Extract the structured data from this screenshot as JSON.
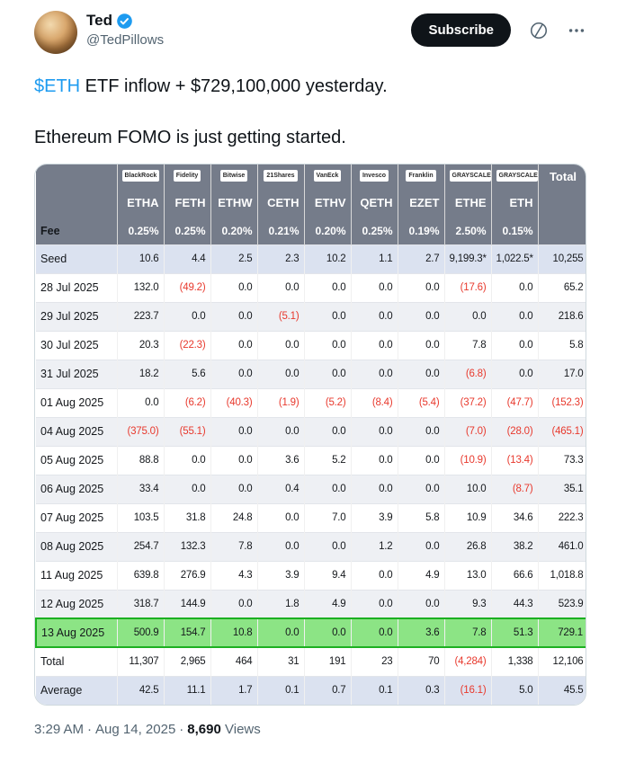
{
  "post": {
    "author": {
      "name": "Ted",
      "handle": "@TedPillows"
    },
    "actions": {
      "subscribe_label": "Subscribe"
    },
    "body": {
      "cashtag": "$ETH",
      "line1_rest": " ETF inflow + $729,100,000 yesterday.",
      "line2": "Ethereum FOMO is just getting started."
    },
    "footer": {
      "time": "3:29 AM",
      "separator": "·",
      "date": "Aug 14, 2025",
      "views_count": "8,690",
      "views_label": "Views"
    }
  },
  "table": {
    "issuers": [
      "BlackRock",
      "Fidelity",
      "Bitwise",
      "21Shares",
      "VanEck",
      "Invesco",
      "Franklin",
      "GRAYSCALE",
      "GRAYSCALE"
    ],
    "total_header": "Total",
    "tickers": [
      "ETHA",
      "FETH",
      "ETHW",
      "CETH",
      "ETHV",
      "QETH",
      "EZET",
      "ETHE",
      "ETH"
    ],
    "fee_label": "Fee",
    "fees": [
      "0.25%",
      "0.25%",
      "0.20%",
      "0.21%",
      "0.20%",
      "0.25%",
      "0.19%",
      "2.50%",
      "0.15%"
    ],
    "rows": [
      {
        "label": "Seed",
        "kind": "seed",
        "values": [
          "10.6",
          "4.4",
          "2.5",
          "2.3",
          "10.2",
          "1.1",
          "2.7",
          "9,199.3*",
          "1,022.5*"
        ],
        "total": "10,255"
      },
      {
        "label": "28 Jul 2025",
        "kind": "date",
        "values": [
          "132.0",
          "(49.2)",
          "0.0",
          "0.0",
          "0.0",
          "0.0",
          "0.0",
          "(17.6)",
          "0.0"
        ],
        "total": "65.2"
      },
      {
        "label": "29 Jul 2025",
        "kind": "date",
        "values": [
          "223.7",
          "0.0",
          "0.0",
          "(5.1)",
          "0.0",
          "0.0",
          "0.0",
          "0.0",
          "0.0"
        ],
        "total": "218.6"
      },
      {
        "label": "30 Jul 2025",
        "kind": "date",
        "values": [
          "20.3",
          "(22.3)",
          "0.0",
          "0.0",
          "0.0",
          "0.0",
          "0.0",
          "7.8",
          "0.0"
        ],
        "total": "5.8"
      },
      {
        "label": "31 Jul 2025",
        "kind": "date",
        "values": [
          "18.2",
          "5.6",
          "0.0",
          "0.0",
          "0.0",
          "0.0",
          "0.0",
          "(6.8)",
          "0.0"
        ],
        "total": "17.0"
      },
      {
        "label": "01 Aug 2025",
        "kind": "date",
        "values": [
          "0.0",
          "(6.2)",
          "(40.3)",
          "(1.9)",
          "(5.2)",
          "(8.4)",
          "(5.4)",
          "(37.2)",
          "(47.7)"
        ],
        "total": "(152.3)"
      },
      {
        "label": "04 Aug 2025",
        "kind": "date",
        "values": [
          "(375.0)",
          "(55.1)",
          "0.0",
          "0.0",
          "0.0",
          "0.0",
          "0.0",
          "(7.0)",
          "(28.0)"
        ],
        "total": "(465.1)"
      },
      {
        "label": "05 Aug 2025",
        "kind": "date",
        "values": [
          "88.8",
          "0.0",
          "0.0",
          "3.6",
          "5.2",
          "0.0",
          "0.0",
          "(10.9)",
          "(13.4)"
        ],
        "total": "73.3"
      },
      {
        "label": "06 Aug 2025",
        "kind": "date",
        "values": [
          "33.4",
          "0.0",
          "0.0",
          "0.4",
          "0.0",
          "0.0",
          "0.0",
          "10.0",
          "(8.7)"
        ],
        "total": "35.1"
      },
      {
        "label": "07 Aug 2025",
        "kind": "date",
        "values": [
          "103.5",
          "31.8",
          "24.8",
          "0.0",
          "7.0",
          "3.9",
          "5.8",
          "10.9",
          "34.6"
        ],
        "total": "222.3"
      },
      {
        "label": "08 Aug 2025",
        "kind": "date",
        "values": [
          "254.7",
          "132.3",
          "7.8",
          "0.0",
          "0.0",
          "1.2",
          "0.0",
          "26.8",
          "38.2"
        ],
        "total": "461.0"
      },
      {
        "label": "11 Aug 2025",
        "kind": "date",
        "values": [
          "639.8",
          "276.9",
          "4.3",
          "3.9",
          "9.4",
          "0.0",
          "4.9",
          "13.0",
          "66.6"
        ],
        "total": "1,018.8"
      },
      {
        "label": "12 Aug 2025",
        "kind": "date",
        "values": [
          "318.7",
          "144.9",
          "0.0",
          "1.8",
          "4.9",
          "0.0",
          "0.0",
          "9.3",
          "44.3"
        ],
        "total": "523.9"
      },
      {
        "label": "13 Aug 2025",
        "kind": "highlight",
        "values": [
          "500.9",
          "154.7",
          "10.8",
          "0.0",
          "0.0",
          "0.0",
          "3.6",
          "7.8",
          "51.3"
        ],
        "total": "729.1"
      },
      {
        "label": "Total",
        "kind": "total",
        "values": [
          "11,307",
          "2,965",
          "464",
          "31",
          "191",
          "23",
          "70",
          "(4,284)",
          "1,338"
        ],
        "total": "12,106"
      },
      {
        "label": "Average",
        "kind": "average",
        "values": [
          "42.5",
          "11.1",
          "1.7",
          "0.1",
          "0.7",
          "0.1",
          "0.3",
          "(16.1)",
          "5.0"
        ],
        "total": "45.5"
      }
    ],
    "colors": {
      "header_bg": "#757c8a",
      "seed_bg": "#dbe2f0",
      "alt_bg": "#eef0f4",
      "highlight_bg": "#8ce485",
      "highlight_border": "#1cb021",
      "negative": "#e8392d"
    }
  }
}
